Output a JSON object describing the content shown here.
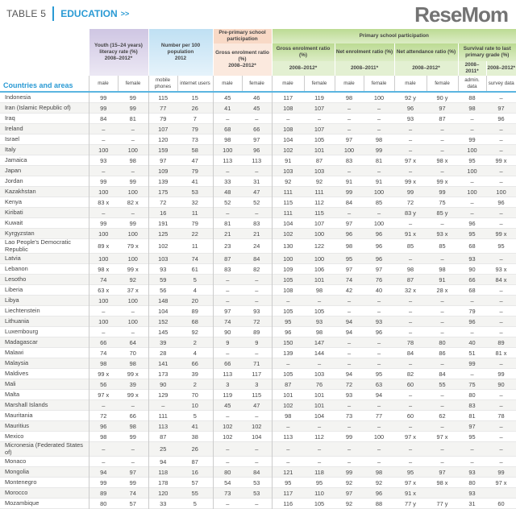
{
  "header": {
    "table_label": "TABLE 5",
    "section": "EDUCATION",
    "arrows": ">>"
  },
  "columns": {
    "countries": "Countries and areas",
    "youth": "Youth (15–24 years) literacy rate (%)",
    "youth_years": "2008–2012*",
    "per100": "Number per 100 population",
    "per100_year": "2012",
    "preprimary": "Pre-primary school participation",
    "pre_gross": "Gross enrolment ratio (%)",
    "pre_years": "2008–2012*",
    "primary": "Primary school participation",
    "gross": "Gross enrolment ratio (%)",
    "gross_years": "2008–2012*",
    "net_enrol": "Net enrolment ratio (%)",
    "net_enrol_years": "2008–2011*",
    "net_attend": "Net attendance ratio (%)",
    "net_attend_years": "2008–2012*",
    "survival": "Survival rate to last primary grade (%)",
    "survival_admin_years": "2008–2011*",
    "survival_survey_years": "2008–2012*",
    "male": "male",
    "female": "female",
    "mobile": "mobile phones",
    "internet": "internet users",
    "admin": "admin. data",
    "survey": "survey data"
  },
  "rows": [
    [
      "Indonesia",
      "99",
      "99",
      "115",
      "15",
      "45",
      "46",
      "117",
      "119",
      "98",
      "100",
      "92 y",
      "90 y",
      "88",
      "–"
    ],
    [
      "Iran (Islamic Republic of)",
      "99",
      "99",
      "77",
      "26",
      "41",
      "45",
      "108",
      "107",
      "–",
      "–",
      "96",
      "97",
      "98",
      "97"
    ],
    [
      "Iraq",
      "84",
      "81",
      "79",
      "7",
      "–",
      "–",
      "–",
      "–",
      "–",
      "–",
      "93",
      "87",
      "–",
      "96"
    ],
    [
      "Ireland",
      "–",
      "–",
      "107",
      "79",
      "68",
      "66",
      "108",
      "107",
      "–",
      "–",
      "–",
      "–",
      "–",
      "–"
    ],
    [
      "Israel",
      "–",
      "–",
      "120",
      "73",
      "98",
      "97",
      "104",
      "105",
      "97",
      "98",
      "–",
      "–",
      "99",
      "–"
    ],
    [
      "Italy",
      "100",
      "100",
      "159",
      "58",
      "100",
      "96",
      "102",
      "101",
      "100",
      "99",
      "–",
      "–",
      "100",
      "–"
    ],
    [
      "Jamaica",
      "93",
      "98",
      "97",
      "47",
      "113",
      "113",
      "91",
      "87",
      "83",
      "81",
      "97 x",
      "98 x",
      "95",
      "99 x"
    ],
    [
      "Japan",
      "–",
      "–",
      "109",
      "79",
      "–",
      "–",
      "103",
      "103",
      "–",
      "–",
      "–",
      "–",
      "100",
      "–"
    ],
    [
      "Jordan",
      "99",
      "99",
      "139",
      "41",
      "33",
      "31",
      "92",
      "92",
      "91",
      "91",
      "99 x",
      "99 x",
      "–",
      "–"
    ],
    [
      "Kazakhstan",
      "100",
      "100",
      "175",
      "53",
      "48",
      "47",
      "111",
      "111",
      "99",
      "100",
      "99",
      "99",
      "100",
      "100"
    ],
    [
      "Kenya",
      "83 x",
      "82 x",
      "72",
      "32",
      "52",
      "52",
      "115",
      "112",
      "84",
      "85",
      "72",
      "75",
      "–",
      "96"
    ],
    [
      "Kiribati",
      "–",
      "–",
      "16",
      "11",
      "–",
      "–",
      "111",
      "115",
      "–",
      "–",
      "83 y",
      "85 y",
      "–",
      "–"
    ],
    [
      "Kuwait",
      "99",
      "99",
      "191",
      "79",
      "81",
      "83",
      "104",
      "107",
      "97",
      "100",
      "–",
      "–",
      "96",
      "–"
    ],
    [
      "Kyrgyzstan",
      "100",
      "100",
      "125",
      "22",
      "21",
      "21",
      "102",
      "100",
      "96",
      "96",
      "91 x",
      "93 x",
      "95",
      "99 x"
    ],
    [
      "Lao People's Democratic Republic",
      "89 x",
      "79 x",
      "102",
      "11",
      "23",
      "24",
      "130",
      "122",
      "98",
      "96",
      "85",
      "85",
      "68",
      "95"
    ],
    [
      "Latvia",
      "100",
      "100",
      "103",
      "74",
      "87",
      "84",
      "100",
      "100",
      "95",
      "96",
      "–",
      "–",
      "93",
      "–"
    ],
    [
      "Lebanon",
      "98 x",
      "99 x",
      "93",
      "61",
      "83",
      "82",
      "109",
      "106",
      "97",
      "97",
      "98",
      "98",
      "90",
      "93 x"
    ],
    [
      "Lesotho",
      "74",
      "92",
      "59",
      "5",
      "–",
      "–",
      "105",
      "101",
      "74",
      "76",
      "87",
      "91",
      "66",
      "84 x"
    ],
    [
      "Liberia",
      "63 x",
      "37 x",
      "56",
      "4",
      "–",
      "–",
      "108",
      "98",
      "42",
      "40",
      "32 x",
      "28 x",
      "68",
      "–"
    ],
    [
      "Libya",
      "100",
      "100",
      "148",
      "20",
      "–",
      "–",
      "–",
      "–",
      "–",
      "–",
      "–",
      "–",
      "–",
      "–"
    ],
    [
      "Liechtenstein",
      "–",
      "–",
      "104",
      "89",
      "97",
      "93",
      "105",
      "105",
      "–",
      "–",
      "–",
      "–",
      "79",
      "–"
    ],
    [
      "Lithuania",
      "100",
      "100",
      "152",
      "68",
      "74",
      "72",
      "95",
      "93",
      "94",
      "93",
      "–",
      "–",
      "96",
      "–"
    ],
    [
      "Luxembourg",
      "–",
      "–",
      "145",
      "92",
      "90",
      "89",
      "96",
      "98",
      "94",
      "96",
      "–",
      "–",
      "–",
      "–"
    ],
    [
      "Madagascar",
      "66",
      "64",
      "39",
      "2",
      "9",
      "9",
      "150",
      "147",
      "–",
      "–",
      "78",
      "80",
      "40",
      "89"
    ],
    [
      "Malawi",
      "74",
      "70",
      "28",
      "4",
      "–",
      "–",
      "139",
      "144",
      "–",
      "–",
      "84",
      "86",
      "51",
      "81 x"
    ],
    [
      "Malaysia",
      "98",
      "98",
      "141",
      "66",
      "66",
      "71",
      "–",
      "–",
      "–",
      "–",
      "–",
      "–",
      "99",
      "–"
    ],
    [
      "Maldives",
      "99 x",
      "99 x",
      "173",
      "39",
      "113",
      "117",
      "105",
      "103",
      "94",
      "95",
      "82",
      "84",
      "–",
      "99"
    ],
    [
      "Mali",
      "56",
      "39",
      "90",
      "2",
      "3",
      "3",
      "87",
      "76",
      "72",
      "63",
      "60",
      "55",
      "75",
      "90"
    ],
    [
      "Malta",
      "97 x",
      "99 x",
      "129",
      "70",
      "119",
      "115",
      "101",
      "101",
      "93",
      "94",
      "–",
      "–",
      "80",
      "–"
    ],
    [
      "Marshall Islands",
      "–",
      "–",
      "–",
      "10",
      "45",
      "47",
      "102",
      "101",
      "–",
      "–",
      "–",
      "–",
      "83",
      "–"
    ],
    [
      "Mauritania",
      "72",
      "66",
      "111",
      "5",
      "–",
      "–",
      "98",
      "104",
      "73",
      "77",
      "60",
      "62",
      "81",
      "78"
    ],
    [
      "Mauritius",
      "96",
      "98",
      "113",
      "41",
      "102",
      "102",
      "–",
      "–",
      "–",
      "–",
      "–",
      "–",
      "97",
      "–"
    ],
    [
      "Mexico",
      "98",
      "99",
      "87",
      "38",
      "102",
      "104",
      "113",
      "112",
      "99",
      "100",
      "97 x",
      "97 x",
      "95",
      "–"
    ],
    [
      "Micronesia (Federated States of)",
      "–",
      "–",
      "25",
      "26",
      "–",
      "–",
      "–",
      "–",
      "–",
      "–",
      "–",
      "–",
      "–",
      "–"
    ],
    [
      "Monaco",
      "–",
      "–",
      "94",
      "87",
      "–",
      "–",
      "–",
      "–",
      "–",
      "–",
      "–",
      "–",
      "–",
      "–"
    ],
    [
      "Mongolia",
      "94",
      "97",
      "118",
      "16",
      "80",
      "84",
      "121",
      "118",
      "99",
      "98",
      "95",
      "97",
      "93",
      "99"
    ],
    [
      "Montenegro",
      "99",
      "99",
      "178",
      "57",
      "54",
      "53",
      "95",
      "95",
      "92",
      "92",
      "97 x",
      "98 x",
      "80",
      "97 x"
    ],
    [
      "Morocco",
      "89",
      "74",
      "120",
      "55",
      "73",
      "53",
      "117",
      "110",
      "97",
      "96",
      "91 x",
      "",
      "93",
      ""
    ],
    [
      "Mozambique",
      "80",
      "57",
      "33",
      "5",
      "–",
      "–",
      "116",
      "105",
      "92",
      "88",
      "77 y",
      "77 y",
      "31",
      "60"
    ]
  ],
  "watermark": "ReseMom",
  "colors": {
    "accent": "#2a9ad4",
    "youth": "#cfc6e3",
    "per100": "#bfe0f3",
    "preprimary": "#f8d9c6",
    "primary": "#bcdb93"
  }
}
